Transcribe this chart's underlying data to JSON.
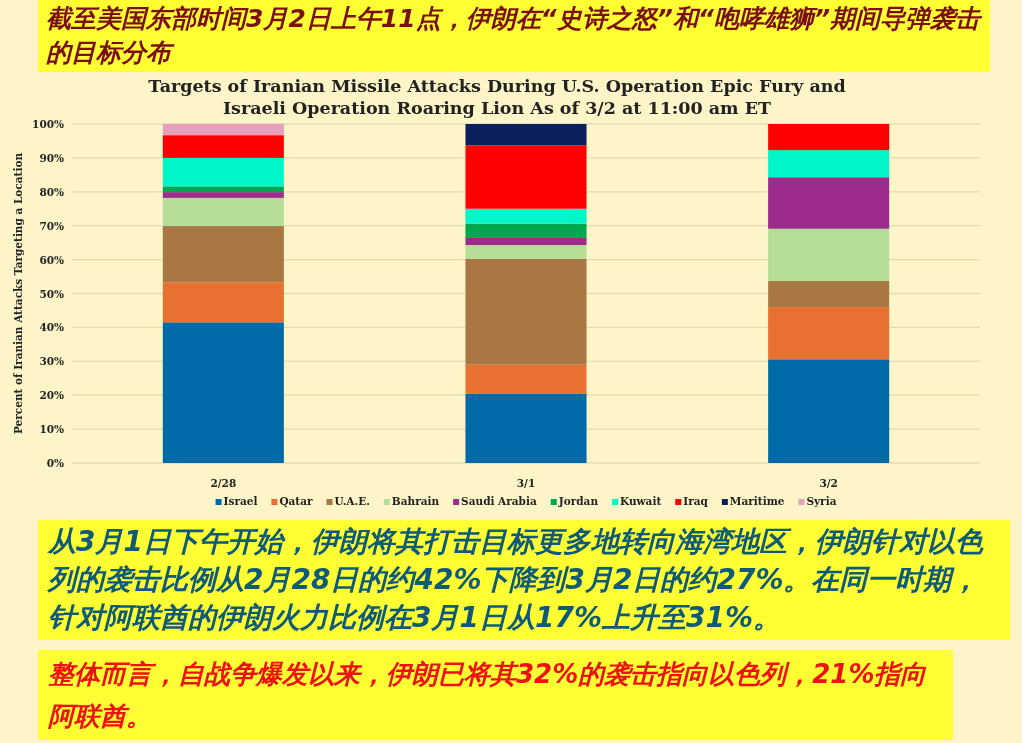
{
  "chart_data": {
    "type": "bar",
    "stacked": true,
    "title": "截至美国东部时间3月2日上午11点，伊朗在“史诗之怒”和“咆哮雄狮”期间导弹袭击的目标分布",
    "subtitle": "Targets of Iranian Missile Attacks During U.S. Operation Epic Fury and Israeli Operation Roaring Lion As of 3/2 at 11:00 am ET",
    "ylabel": "Percent of Iranian Attacks Targeting a Location",
    "categories": [
      "2/28",
      "3/1",
      "3/2"
    ],
    "series": [
      {
        "name": "Israel",
        "color": "#006ba8",
        "values": [
          41.5,
          20.4,
          30.6
        ]
      },
      {
        "name": "Qatar",
        "color": "#e87030",
        "values": [
          11.8,
          8.6,
          15.4
        ]
      },
      {
        "name": "U.A.E.",
        "color": "#a97842",
        "values": [
          16.6,
          31.2,
          7.7
        ]
      },
      {
        "name": "Bahrain",
        "color": "#b6de98",
        "values": [
          8.3,
          4.1,
          15.4
        ]
      },
      {
        "name": "Saudi Arabia",
        "color": "#9c2b8c",
        "values": [
          1.7,
          2.1,
          15.2
        ]
      },
      {
        "name": "Jordan",
        "color": "#00a650",
        "values": [
          1.7,
          4.2,
          0
        ]
      },
      {
        "name": "Kuwait",
        "color": "#00f5c8",
        "values": [
          8.4,
          4.4,
          8.0
        ]
      },
      {
        "name": "Iraq",
        "color": "#ff0000",
        "values": [
          6.7,
          18.7,
          7.7
        ]
      },
      {
        "name": "Maritime",
        "color": "#0a1f5c",
        "values": [
          0,
          6.3,
          0
        ]
      },
      {
        "name": "Syria",
        "color": "#e79fbd",
        "values": [
          3.3,
          0,
          0
        ]
      }
    ],
    "ylim": [
      0,
      100
    ],
    "yticks": [
      {
        "value": 0,
        "label": "0%"
      },
      {
        "value": 10,
        "label": "10%"
      },
      {
        "value": 20,
        "label": "20%"
      },
      {
        "value": 30,
        "label": "30%"
      },
      {
        "value": 40,
        "label": "40%"
      },
      {
        "value": 50,
        "label": "50%"
      },
      {
        "value": 60,
        "label": "60%"
      },
      {
        "value": 70,
        "label": "70%"
      },
      {
        "value": 80,
        "label": "80%"
      },
      {
        "value": 90,
        "label": "90%"
      },
      {
        "value": 100,
        "label": "100%"
      }
    ],
    "grid": "y",
    "legend": "bottom",
    "annotations": [
      "从3月1日下午开始，伊朗将其打击目标更多地转向海湾地区，伊朗针对以色列的袭击比例从2月28日的约42%下降到3月2日的约27%。在同一时期，针对阿联酋的伊朗火力比例在3月1日从17%上升至31%。",
      "整体而言，自战争爆发以来，伊朗已将其32%的袭击指向以色列，21%指向阿联酋。"
    ]
  }
}
